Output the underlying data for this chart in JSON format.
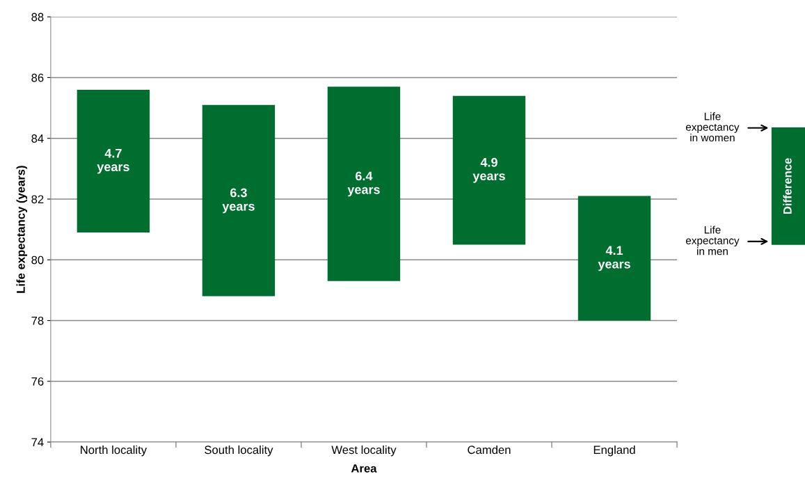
{
  "chart_data": {
    "type": "bar",
    "xlabel": "Area",
    "ylabel": "Life expectancy (years)",
    "categories": [
      "North locality",
      "South locality",
      "West locality",
      "Camden",
      "England"
    ],
    "series": [
      {
        "name": "Difference",
        "color": "#006e2e",
        "values": [
          4.7,
          6.3,
          6.4,
          4.9,
          4.1
        ],
        "base": [
          80.9,
          78.8,
          79.3,
          80.5,
          78.0
        ],
        "value_labels": [
          "4.7\nyears",
          "6.3\nyears",
          "6.4\nyears",
          "4.9\nyears",
          "4.1\nyears"
        ]
      }
    ],
    "ylim": [
      74,
      88
    ],
    "yticks": [
      74,
      76,
      78,
      80,
      82,
      84,
      86,
      88
    ],
    "grid": "y",
    "legend": "right",
    "annotations": [
      "Life\nexpectancy\nin women",
      "Life\nexpectancy\nin men"
    ]
  }
}
